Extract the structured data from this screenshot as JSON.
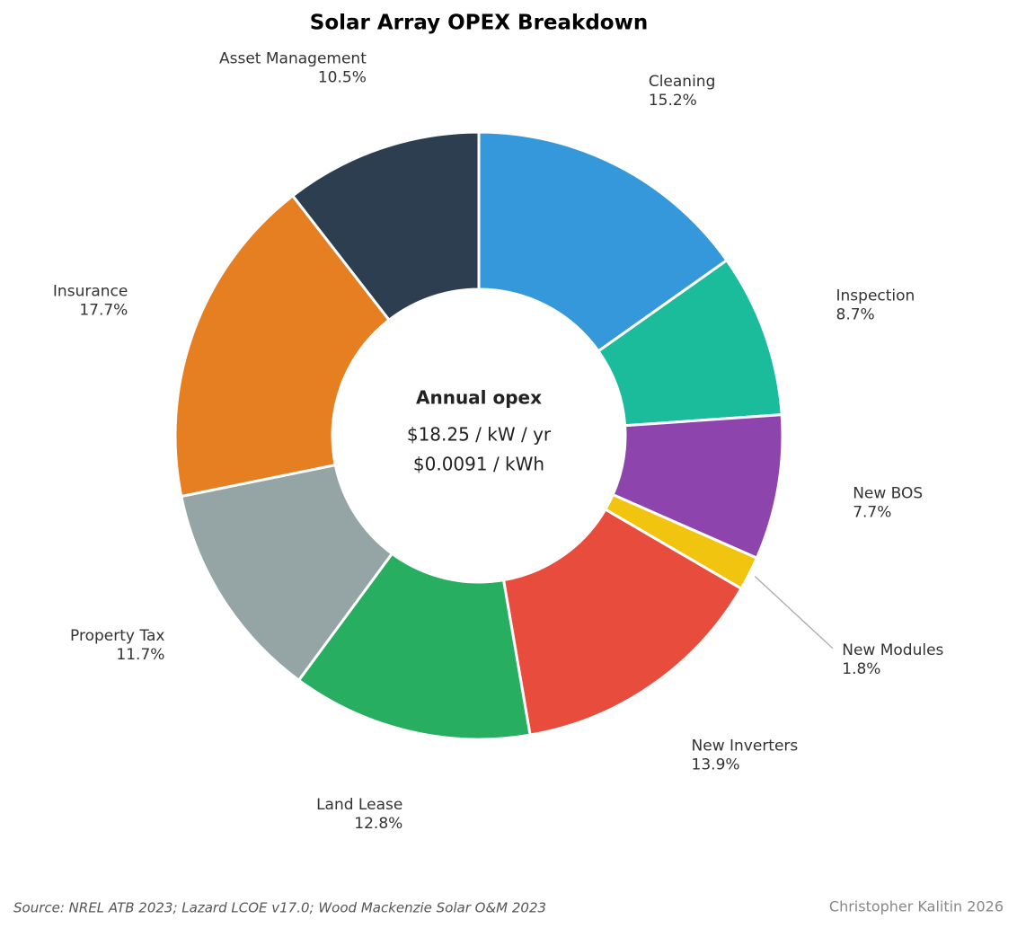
{
  "chart_data": {
    "type": "donut",
    "title": "Solar Array OPEX Breakdown",
    "categories": [
      "Cleaning",
      "Inspection",
      "New BOS",
      "New Modules",
      "New Inverters",
      "Land Lease",
      "Property Tax",
      "Insurance",
      "Asset Management"
    ],
    "values": [
      15.2,
      8.7,
      7.7,
      1.8,
      13.9,
      12.8,
      11.7,
      17.7,
      10.5
    ],
    "value_labels": [
      "15.2%",
      "8.7%",
      "7.7%",
      "1.8%",
      "13.9%",
      "12.8%",
      "11.7%",
      "17.7%",
      "10.5%"
    ],
    "colors": [
      "#3498db",
      "#1abc9c",
      "#8e44ad",
      "#f1c40f",
      "#e74c3c",
      "#27ae60",
      "#95a5a6",
      "#e67e22",
      "#2c3e50"
    ],
    "center_title": "Annual opex",
    "center_lines": [
      "$18.25 / kW / yr",
      "$0.0091 / kWh"
    ],
    "source": "Source: NREL ATB 2023; Lazard LCOE v17.0; Wood Mackenzie Solar O&M 2023",
    "credit": "Christopher Kalitin 2026"
  }
}
